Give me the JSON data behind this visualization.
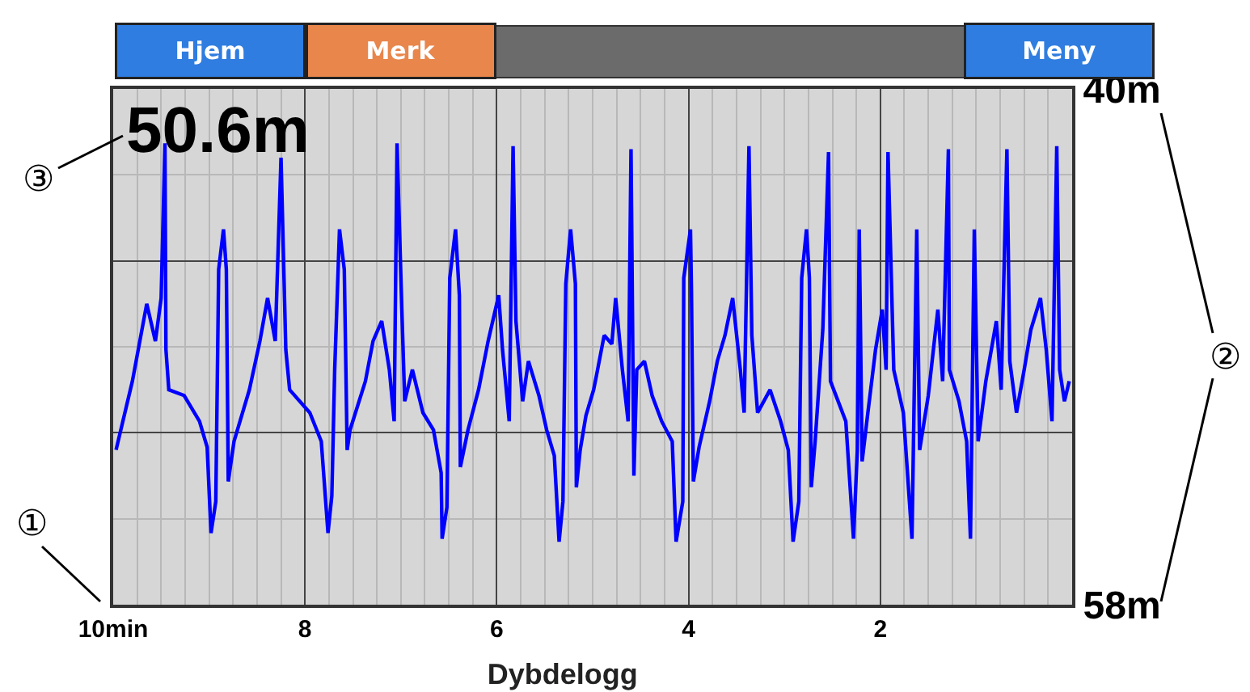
{
  "chart_data": {
    "type": "line",
    "title": "Dybdelogg",
    "annotations": [
      "Hjem",
      "Merk",
      "Meny",
      "50.6m",
      "①",
      "②",
      "③"
    ],
    "xlim": [
      10,
      0
    ],
    "xticks": [
      {
        "value": 10,
        "label": "10min"
      },
      8,
      6,
      4,
      2
    ],
    "ylim": [
      58,
      40
    ],
    "yticks": [
      {
        "value": 40,
        "label": "40m"
      },
      {
        "value": 46,
        "label": null
      },
      {
        "value": 52,
        "label": null
      },
      {
        "value": 58,
        "label": "58m"
      }
    ],
    "grid": true,
    "legend": false,
    "line_style": "solid",
    "x": [
      9.97,
      9.8,
      9.65,
      9.56,
      9.5,
      9.46,
      9.45,
      9.42,
      9.26,
      9.1,
      9.02,
      8.98,
      8.93,
      8.9,
      8.85,
      8.82,
      8.8,
      8.74,
      8.58,
      8.47,
      8.39,
      8.31,
      8.25,
      8.2,
      8.16,
      7.95,
      7.83,
      7.76,
      7.72,
      7.69,
      7.64,
      7.59,
      7.56,
      7.53,
      7.37,
      7.29,
      7.2,
      7.12,
      7.07,
      7.04,
      6.99,
      6.96,
      6.88,
      6.77,
      6.66,
      6.58,
      6.57,
      6.52,
      6.49,
      6.43,
      6.39,
      6.38,
      6.3,
      6.19,
      6.09,
      5.98,
      5.94,
      5.87,
      5.83,
      5.8,
      5.73,
      5.67,
      5.56,
      5.48,
      5.4,
      5.35,
      5.31,
      5.28,
      5.23,
      5.18,
      5.17,
      5.13,
      5.07,
      4.99,
      4.96,
      4.88,
      4.8,
      4.76,
      4.69,
      4.63,
      4.6,
      4.57,
      4.54,
      4.46,
      4.38,
      4.28,
      4.17,
      4.13,
      4.06,
      4.05,
      3.98,
      3.97,
      3.95,
      3.89,
      3.78,
      3.7,
      3.62,
      3.54,
      3.46,
      3.42,
      3.37,
      3.34,
      3.28,
      3.15,
      3.04,
      2.96,
      2.91,
      2.85,
      2.82,
      2.77,
      2.74,
      2.72,
      2.68,
      2.6,
      2.54,
      2.52,
      2.44,
      2.36,
      2.28,
      2.24,
      2.22,
      2.19,
      2.13,
      2.05,
      1.98,
      1.94,
      1.92,
      1.86,
      1.76,
      1.67,
      1.62,
      1.59,
      1.5,
      1.4,
      1.35,
      1.29,
      1.28,
      1.18,
      1.1,
      1.06,
      1.02,
      0.98,
      0.9,
      0.79,
      0.74,
      0.68,
      0.65,
      0.58,
      0.5,
      0.43,
      0.33,
      0.27,
      0.21,
      0.16,
      0.13,
      0.08,
      0.03
    ],
    "series": [
      {
        "color": "#0000ff",
        "values": [
          52.6,
          50.2,
          47.5,
          48.8,
          47.3,
          41.9,
          49.1,
          50.5,
          50.7,
          51.6,
          52.5,
          55.5,
          54.4,
          46.3,
          44.9,
          46.3,
          53.7,
          52.3,
          50.5,
          48.8,
          47.3,
          48.8,
          42.4,
          49.1,
          50.5,
          51.3,
          52.3,
          55.5,
          54.2,
          49.8,
          44.9,
          46.3,
          52.6,
          51.9,
          50.2,
          48.8,
          48.1,
          49.8,
          51.6,
          41.9,
          47.7,
          50.9,
          49.8,
          51.3,
          51.9,
          53.4,
          55.7,
          54.6,
          46.6,
          44.9,
          47.2,
          53.2,
          51.9,
          50.5,
          48.8,
          47.2,
          49.1,
          51.6,
          42.0,
          48.1,
          50.9,
          49.5,
          50.7,
          51.9,
          52.8,
          55.8,
          54.4,
          46.8,
          44.9,
          46.8,
          53.9,
          52.6,
          51.4,
          50.5,
          50.0,
          48.6,
          48.9,
          47.3,
          49.8,
          51.6,
          42.1,
          53.5,
          49.8,
          49.5,
          50.7,
          51.6,
          52.3,
          55.8,
          54.4,
          46.6,
          44.9,
          47.0,
          53.7,
          52.5,
          50.9,
          49.5,
          48.6,
          47.3,
          49.8,
          51.3,
          42.0,
          48.6,
          51.3,
          50.5,
          51.6,
          52.6,
          55.8,
          54.4,
          46.6,
          44.9,
          46.6,
          53.9,
          52.3,
          48.4,
          42.2,
          50.2,
          50.9,
          51.6,
          55.7,
          52.6,
          44.9,
          53.0,
          51.3,
          49.1,
          47.7,
          49.8,
          42.2,
          49.8,
          51.3,
          55.7,
          44.9,
          52.6,
          50.7,
          47.7,
          50.2,
          42.1,
          49.8,
          50.9,
          52.3,
          55.7,
          44.9,
          52.3,
          50.2,
          48.1,
          50.5,
          42.1,
          49.5,
          51.3,
          49.8,
          48.4,
          47.3,
          49.1,
          51.6,
          42.0,
          49.8,
          50.9,
          50.2
        ]
      }
    ]
  }
}
